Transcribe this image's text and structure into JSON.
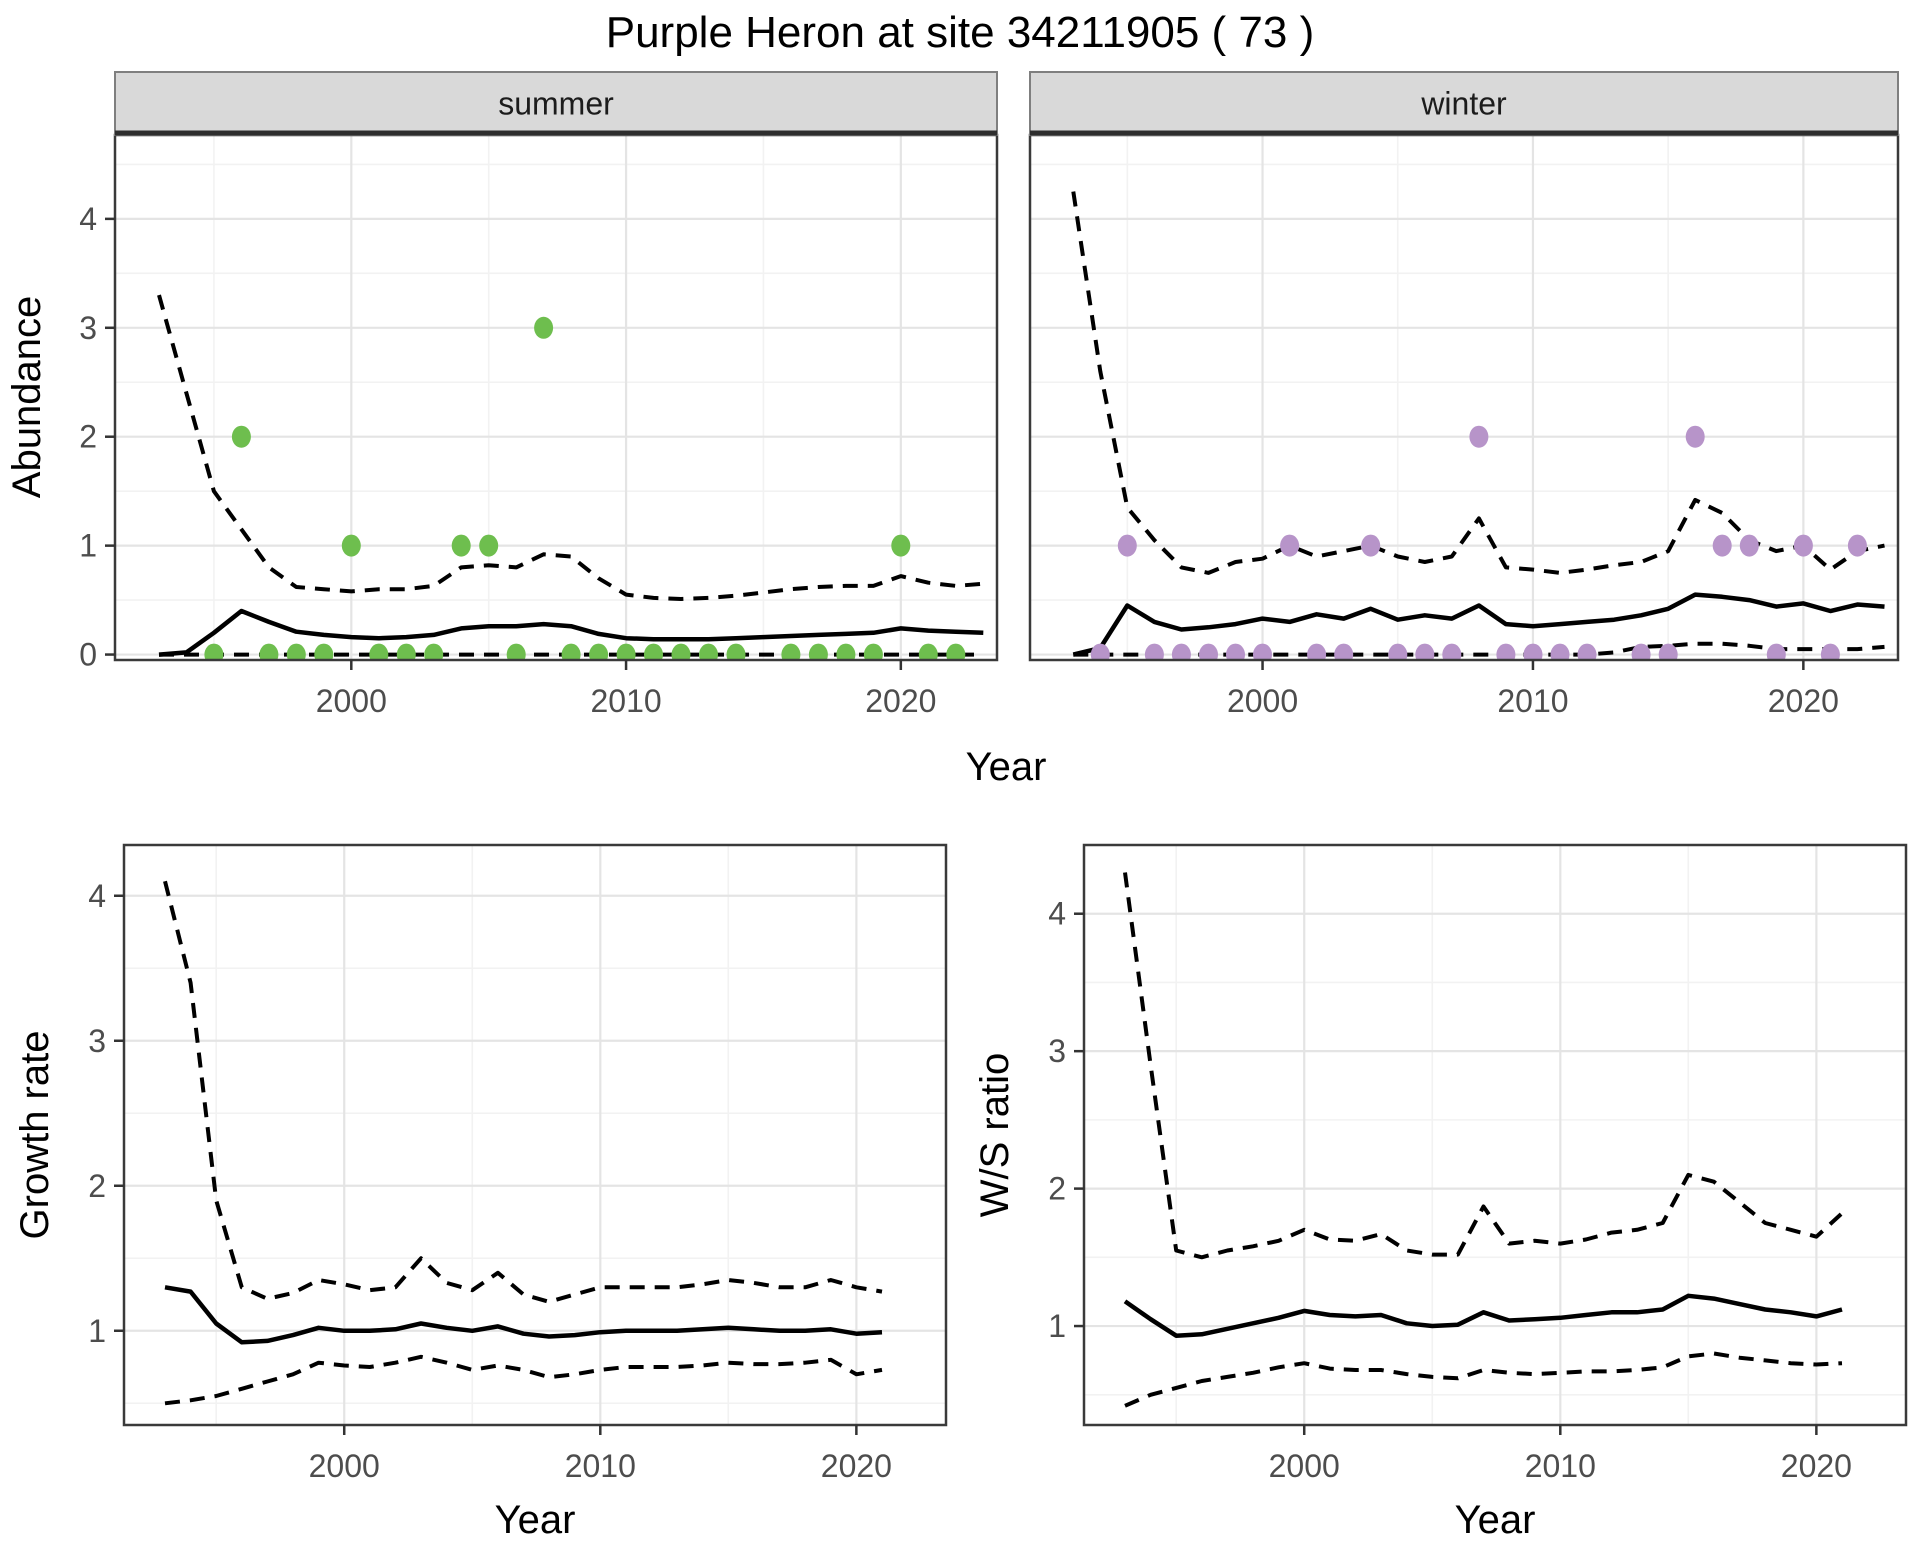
{
  "title": "Purple Heron at site 34211905 ( 73 )",
  "colors": {
    "summer_point": "#6ebe4e",
    "winter_point": "#b794c9",
    "line": "#000000",
    "grid_major": "#e4e4e4",
    "grid_minor": "#f2f2f2",
    "panel_border": "#3a3a3a",
    "strip_fill": "#d9d9d9",
    "strip_edge": "#7f7f7f",
    "strip_bottom": "#2e2e2e",
    "tick_mark": "#333333",
    "tick_label": "#4d4d4d",
    "panel_bg": "#ffffff"
  },
  "chart_data": [
    {
      "type": "line",
      "facet": "summer",
      "xlabel": "Year",
      "ylabel": "Abundance",
      "xlim": [
        1991.4,
        2023.5
      ],
      "ylim": [
        -0.05,
        4.77
      ],
      "xticks": [
        2000,
        2010,
        2020
      ],
      "xminor": [
        1995,
        2005,
        2015
      ],
      "yticks": [
        0,
        1,
        2,
        3,
        4
      ],
      "yminor": [
        0.5,
        1.5,
        2.5,
        3.5,
        4.5
      ],
      "x": [
        1993,
        1994,
        1995,
        1996,
        1997,
        1998,
        1999,
        2000,
        2001,
        2002,
        2003,
        2004,
        2005,
        2006,
        2007,
        2008,
        2009,
        2010,
        2011,
        2012,
        2013,
        2014,
        2015,
        2016,
        2017,
        2018,
        2019,
        2020,
        2021,
        2022,
        2023
      ],
      "series": [
        {
          "name": "upper-95ci",
          "style": "dashed",
          "values": [
            3.3,
            2.4,
            1.5,
            1.15,
            0.8,
            0.62,
            0.6,
            0.58,
            0.6,
            0.6,
            0.63,
            0.8,
            0.82,
            0.8,
            0.92,
            0.9,
            0.7,
            0.55,
            0.52,
            0.51,
            0.52,
            0.54,
            0.57,
            0.6,
            0.62,
            0.63,
            0.63,
            0.72,
            0.66,
            0.63,
            0.65
          ]
        },
        {
          "name": "mean",
          "style": "solid",
          "values": [
            0.0,
            0.02,
            0.2,
            0.4,
            0.3,
            0.21,
            0.18,
            0.16,
            0.15,
            0.16,
            0.18,
            0.24,
            0.26,
            0.26,
            0.28,
            0.26,
            0.19,
            0.15,
            0.14,
            0.14,
            0.14,
            0.15,
            0.16,
            0.17,
            0.18,
            0.19,
            0.2,
            0.24,
            0.22,
            0.21,
            0.2
          ]
        },
        {
          "name": "lower-95ci",
          "style": "dashed",
          "values": [
            0,
            0,
            0,
            0,
            0,
            0,
            0,
            0,
            0,
            0,
            0,
            0,
            0,
            0,
            0,
            0,
            0,
            0,
            0,
            0,
            0,
            0,
            0,
            0,
            0,
            0,
            0,
            0,
            0,
            0,
            0
          ]
        }
      ],
      "points": {
        "name": "observed-count",
        "color_key": "summer_point",
        "x": [
          1995,
          1996,
          1997,
          1998,
          1999,
          2000,
          2001,
          2002,
          2003,
          2004,
          2005,
          2006,
          2007,
          2008,
          2009,
          2010,
          2011,
          2012,
          2013,
          2014,
          2016,
          2017,
          2018,
          2019,
          2020,
          2021,
          2022
        ],
        "y": [
          0,
          2,
          0,
          0,
          0,
          1,
          0,
          0,
          0,
          1,
          1,
          0,
          3,
          0,
          0,
          0,
          0,
          0,
          0,
          0,
          0,
          0,
          0,
          0,
          1,
          0,
          0
        ]
      }
    },
    {
      "type": "line",
      "facet": "winter",
      "xlabel": "Year",
      "ylabel": "Abundance",
      "xlim": [
        1991.4,
        2023.5
      ],
      "ylim": [
        -0.05,
        4.77
      ],
      "xticks": [
        2000,
        2010,
        2020
      ],
      "xminor": [
        1995,
        2005,
        2015
      ],
      "yticks": [
        0,
        1,
        2,
        3,
        4
      ],
      "yminor": [
        0.5,
        1.5,
        2.5,
        3.5,
        4.5
      ],
      "x": [
        1993,
        1994,
        1995,
        1996,
        1997,
        1998,
        1999,
        2000,
        2001,
        2002,
        2003,
        2004,
        2005,
        2006,
        2007,
        2008,
        2009,
        2010,
        2011,
        2012,
        2013,
        2014,
        2015,
        2016,
        2017,
        2018,
        2019,
        2020,
        2021,
        2022,
        2023
      ],
      "series": [
        {
          "name": "upper-95ci",
          "style": "dashed",
          "values": [
            4.25,
            2.6,
            1.35,
            1.05,
            0.8,
            0.75,
            0.85,
            0.88,
            1.0,
            0.9,
            0.95,
            1.0,
            0.9,
            0.85,
            0.9,
            1.25,
            0.8,
            0.78,
            0.75,
            0.78,
            0.82,
            0.85,
            0.95,
            1.42,
            1.3,
            1.05,
            0.95,
            1.0,
            0.78,
            0.95,
            1.0
          ]
        },
        {
          "name": "mean",
          "style": "solid",
          "values": [
            0.0,
            0.06,
            0.45,
            0.3,
            0.23,
            0.25,
            0.28,
            0.33,
            0.3,
            0.37,
            0.33,
            0.42,
            0.32,
            0.36,
            0.33,
            0.45,
            0.28,
            0.26,
            0.28,
            0.3,
            0.32,
            0.36,
            0.42,
            0.55,
            0.53,
            0.5,
            0.44,
            0.47,
            0.4,
            0.46,
            0.44
          ]
        },
        {
          "name": "lower-95ci",
          "style": "dashed",
          "values": [
            0,
            0,
            0,
            0,
            0,
            0,
            0,
            0,
            0,
            0,
            0,
            0,
            0,
            0,
            0,
            0,
            0,
            0,
            0,
            0,
            0.02,
            0.07,
            0.08,
            0.1,
            0.1,
            0.08,
            0.05,
            0.05,
            0.05,
            0.05,
            0.07
          ]
        }
      ],
      "points": {
        "name": "observed-count",
        "color_key": "winter_point",
        "x": [
          1994,
          1995,
          1996,
          1997,
          1998,
          1999,
          2000,
          2001,
          2002,
          2003,
          2004,
          2005,
          2006,
          2007,
          2008,
          2009,
          2010,
          2011,
          2012,
          2014,
          2015,
          2016,
          2017,
          2018,
          2019,
          2020,
          2021,
          2022
        ],
        "y": [
          0,
          1,
          0,
          0,
          0,
          0,
          0,
          1,
          0,
          0,
          1,
          0,
          0,
          0,
          2,
          0,
          0,
          0,
          0,
          0,
          0,
          2,
          1,
          1,
          0,
          1,
          0,
          1
        ]
      }
    },
    {
      "type": "line",
      "facet": null,
      "xlabel": "Year",
      "ylabel": "Growth rate",
      "xlim": [
        1991.4,
        2023.5
      ],
      "ylim": [
        0.35,
        4.35
      ],
      "xticks": [
        2000,
        2010,
        2020
      ],
      "xminor": [
        1995,
        2005,
        2015
      ],
      "yticks": [
        1,
        2,
        3,
        4
      ],
      "yminor": [
        0.5,
        1.5,
        2.5,
        3.5
      ],
      "x": [
        1993,
        1994,
        1995,
        1996,
        1997,
        1998,
        1999,
        2000,
        2001,
        2002,
        2003,
        2004,
        2005,
        2006,
        2007,
        2008,
        2009,
        2010,
        2011,
        2012,
        2013,
        2014,
        2015,
        2016,
        2017,
        2018,
        2019,
        2020,
        2021
      ],
      "series": [
        {
          "name": "upper-95ci",
          "style": "dashed",
          "values": [
            4.1,
            3.4,
            1.9,
            1.3,
            1.22,
            1.26,
            1.35,
            1.32,
            1.28,
            1.3,
            1.5,
            1.33,
            1.28,
            1.4,
            1.25,
            1.2,
            1.25,
            1.3,
            1.3,
            1.3,
            1.3,
            1.32,
            1.35,
            1.33,
            1.3,
            1.3,
            1.35,
            1.3,
            1.27
          ]
        },
        {
          "name": "mean",
          "style": "solid",
          "values": [
            1.3,
            1.27,
            1.05,
            0.92,
            0.93,
            0.97,
            1.02,
            1.0,
            1.0,
            1.01,
            1.05,
            1.02,
            1.0,
            1.03,
            0.98,
            0.96,
            0.97,
            0.99,
            1.0,
            1.0,
            1.0,
            1.01,
            1.02,
            1.01,
            1.0,
            1.0,
            1.01,
            0.98,
            0.99
          ]
        },
        {
          "name": "lower-95ci",
          "style": "dashed",
          "values": [
            0.5,
            0.52,
            0.55,
            0.6,
            0.65,
            0.7,
            0.78,
            0.76,
            0.75,
            0.78,
            0.82,
            0.78,
            0.73,
            0.76,
            0.73,
            0.68,
            0.7,
            0.73,
            0.75,
            0.75,
            0.75,
            0.76,
            0.78,
            0.77,
            0.77,
            0.78,
            0.8,
            0.7,
            0.73
          ]
        }
      ],
      "points": null
    },
    {
      "type": "line",
      "facet": null,
      "xlabel": "Year",
      "ylabel": "W/S ratio",
      "xlim": [
        1991.4,
        2023.5
      ],
      "ylim": [
        0.28,
        4.5
      ],
      "xticks": [
        2000,
        2010,
        2020
      ],
      "xminor": [
        1995,
        2005,
        2015
      ],
      "yticks": [
        1,
        2,
        3,
        4
      ],
      "yminor": [
        0.5,
        1.5,
        2.5,
        3.5
      ],
      "x": [
        1993,
        1994,
        1995,
        1996,
        1997,
        1998,
        1999,
        2000,
        2001,
        2002,
        2003,
        2004,
        2005,
        2006,
        2007,
        2008,
        2009,
        2010,
        2011,
        2012,
        2013,
        2014,
        2015,
        2016,
        2017,
        2018,
        2019,
        2020,
        2021
      ],
      "series": [
        {
          "name": "upper-95ci",
          "style": "dashed",
          "values": [
            4.3,
            2.9,
            1.55,
            1.5,
            1.55,
            1.58,
            1.62,
            1.7,
            1.63,
            1.62,
            1.67,
            1.55,
            1.52,
            1.52,
            1.87,
            1.6,
            1.62,
            1.6,
            1.63,
            1.68,
            1.7,
            1.75,
            2.1,
            2.05,
            1.9,
            1.75,
            1.7,
            1.65,
            1.82
          ]
        },
        {
          "name": "mean",
          "style": "solid",
          "values": [
            1.18,
            1.05,
            0.93,
            0.94,
            0.98,
            1.02,
            1.06,
            1.11,
            1.08,
            1.07,
            1.08,
            1.02,
            1.0,
            1.01,
            1.1,
            1.04,
            1.05,
            1.06,
            1.08,
            1.1,
            1.1,
            1.12,
            1.22,
            1.2,
            1.16,
            1.12,
            1.1,
            1.07,
            1.12
          ]
        },
        {
          "name": "lower-95ci",
          "style": "dashed",
          "values": [
            0.42,
            0.5,
            0.55,
            0.6,
            0.63,
            0.66,
            0.7,
            0.73,
            0.69,
            0.68,
            0.68,
            0.65,
            0.63,
            0.62,
            0.68,
            0.66,
            0.65,
            0.66,
            0.67,
            0.67,
            0.68,
            0.7,
            0.78,
            0.8,
            0.77,
            0.75,
            0.73,
            0.72,
            0.73
          ]
        }
      ],
      "points": null
    }
  ]
}
